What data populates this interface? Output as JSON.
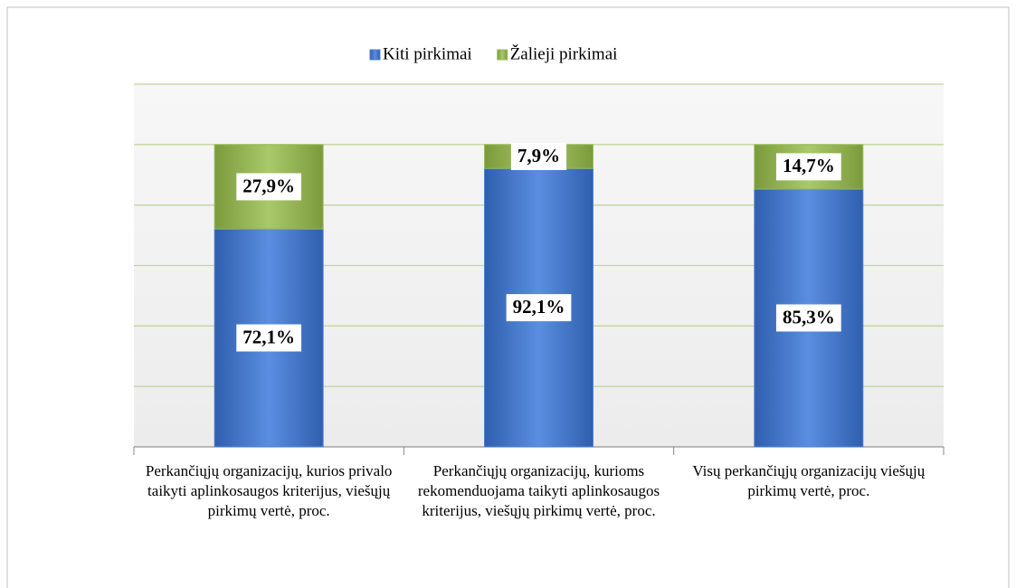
{
  "chart_data": {
    "type": "stacked_bar",
    "categories": [
      "Perkančiųjų organizacijų, kurios privalo taikyti aplinkosaugos kriterijus, viešųjų pirkimų vertė, proc.",
      "Perkančiųjų organizacijų, kurioms rekomenduojama taikyti aplinkosaugos kriterijus, viešųjų pirkimų vertė, proc.",
      "Visų perkančiųjų organizacijų viešųjų pirkimų vertė, proc."
    ],
    "series": [
      {
        "name": "Kiti pirkimai",
        "color": "#4f81cf",
        "values": [
          72.1,
          92.1,
          85.3
        ],
        "value_labels": [
          "72,1%",
          "92,1%",
          "85,3%"
        ]
      },
      {
        "name": "Žalieji pirkimai",
        "color": "#9bbb59",
        "values": [
          27.9,
          7.9,
          14.7
        ],
        "value_labels": [
          "27,9%",
          "7,9%",
          "14,7%"
        ]
      }
    ],
    "ylim": [
      0,
      120
    ],
    "yticks": [
      0,
      20,
      40,
      60,
      80,
      100,
      120
    ],
    "grid": true,
    "legend": "top"
  }
}
